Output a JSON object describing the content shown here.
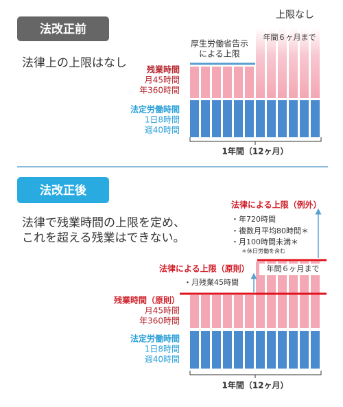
{
  "before": {
    "badge": "法改正前",
    "summary": "法律上の上限はなし",
    "overtime": {
      "title": "残業時間",
      "lines": [
        "月45時間",
        "年360時間"
      ]
    },
    "statutory": {
      "title": "法定労働時間",
      "lines": [
        "1日8時間",
        "週40時間"
      ]
    },
    "notice_limit": [
      "厚生労働省告示",
      "による上限"
    ],
    "no_limit": "上限なし",
    "six_months": "年間６ヶ月まで",
    "period": "1年間（12ヶ月）"
  },
  "after": {
    "badge": "法改正後",
    "summary": [
      "法律で残業時間の上限を定め、",
      "これを超える残業はできない。"
    ],
    "exception": {
      "title": "法律による上限（例外）",
      "items": [
        "・年720時間",
        "・複数月平均80時間＊",
        "・月100時間未満＊"
      ],
      "note": "＊休日労働を含む"
    },
    "principle": {
      "title": "法律による上限（原則）",
      "item": "・月残業45時間"
    },
    "six_months": "年間６ヶ月まで",
    "overtime": {
      "title": "残業時間（原則）",
      "lines": [
        "月45時間",
        "年360時間"
      ]
    },
    "statutory": {
      "title": "法定労働時間",
      "lines": [
        "1日8時間",
        "週40時間"
      ]
    },
    "period": "1年間（12ヶ月）"
  }
}
